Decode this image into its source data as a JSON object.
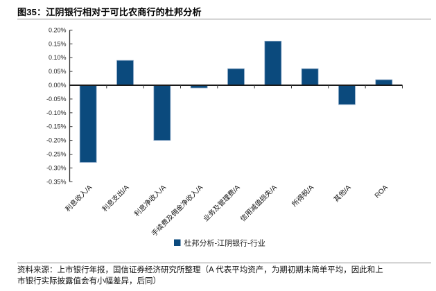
{
  "title": "图35：江阴银行相对于可比农商行的杜邦分析",
  "source_note": {
    "lines": [
      "资料来源：上市银行年报，国信证券经济研究所整理（A 代表平均资产，为期初期末简单平均，因此和上",
      "市银行实际披露值会有小幅差异，后同）"
    ]
  },
  "chart_data": {
    "type": "bar",
    "title": "",
    "categories": [
      "利息收入/A",
      "利息支出/A",
      "利息净收入/A",
      "手续费及佣金净收入/A",
      "业务及管理费/A",
      "信用减值损失/A",
      "所得税/A",
      "其他/A",
      "ROA"
    ],
    "values": [
      -0.28,
      0.09,
      -0.2,
      -0.01,
      0.06,
      0.16,
      0.06,
      -0.07,
      0.02
    ],
    "unit": "%",
    "xlabel": "",
    "ylabel": "",
    "ylim": [
      -0.35,
      0.2
    ],
    "ytick_step": 0.05,
    "ytick_labels": [
      "0.20%",
      "0.15%",
      "0.10%",
      "0.05%",
      "0.00%",
      "-0.05%",
      "-0.10%",
      "-0.15%",
      "-0.20%",
      "-0.25%",
      "-0.30%",
      "-0.35%"
    ],
    "grid": false,
    "legend": [
      "杜邦分析-江阴银行-行业"
    ],
    "legend_position": "bottom-center",
    "bar_color": "#0b4a7d",
    "bar_edge_color": "#8fabc9",
    "axis_color": "#333333"
  }
}
